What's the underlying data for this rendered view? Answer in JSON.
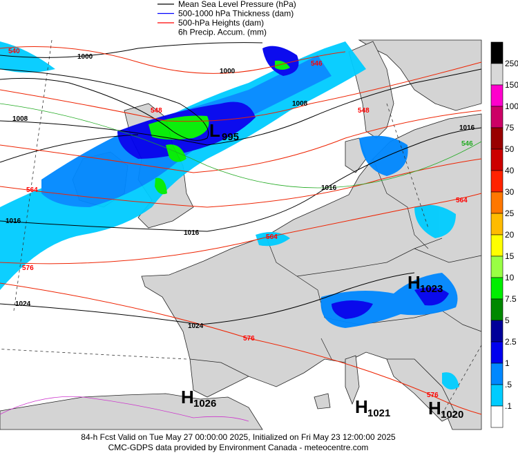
{
  "legend": [
    {
      "label": "Mean Sea Level Pressure (hPa)",
      "color": "#000000"
    },
    {
      "label": "500-1000 hPa Thickness (dam)",
      "color": "#0000ff"
    },
    {
      "label": "500-hPa Heights (dam)",
      "color": "#ff0000"
    },
    {
      "label": "6h Precip. Accum. (mm)"
    }
  ],
  "colorbar": {
    "labels": [
      "250",
      "150",
      "100",
      "75",
      "50",
      "40",
      "30",
      "25",
      "20",
      "15",
      "10",
      "7.5",
      "5",
      "2.5",
      "1",
      ".5",
      ".1"
    ],
    "colors": [
      "#000000",
      "#d8d8d8",
      "#ff00cc",
      "#cc0066",
      "#990000",
      "#cc0000",
      "#ff2200",
      "#ff7700",
      "#ffbb00",
      "#ffff00",
      "#99ff44",
      "#00ee00",
      "#008800",
      "#000099",
      "#0000ee",
      "#0088ff",
      "#00ccff",
      "#ffffff"
    ]
  },
  "pressure_centers": [
    {
      "letter": "L",
      "value": "995"
    },
    {
      "letter": "H",
      "value": "1023"
    },
    {
      "letter": "H",
      "value": "1026"
    },
    {
      "letter": "H",
      "value": "1021"
    },
    {
      "letter": "H",
      "value": "1020"
    }
  ],
  "contour_labels": [
    {
      "text": "540",
      "color": "#ff0000"
    },
    {
      "text": "1000",
      "color": "#000000"
    },
    {
      "text": "1000",
      "color": "#000000"
    },
    {
      "text": "1008",
      "color": "#000000"
    },
    {
      "text": "546",
      "color": "#ff0000"
    },
    {
      "text": "548",
      "color": "#ff0000"
    },
    {
      "text": "1008",
      "color": "#000000"
    },
    {
      "text": "548",
      "color": "#ff0000"
    },
    {
      "text": "1016",
      "color": "#000000"
    },
    {
      "text": "546",
      "color": "#22aa22"
    },
    {
      "text": "1016",
      "color": "#000000"
    },
    {
      "text": "564",
      "color": "#ff0000"
    },
    {
      "text": "564",
      "color": "#ff0000"
    },
    {
      "text": "1016",
      "color": "#000000"
    },
    {
      "text": "1016",
      "color": "#000000"
    },
    {
      "text": "564",
      "color": "#ff0000"
    },
    {
      "text": "576",
      "color": "#ff0000"
    },
    {
      "text": "1024",
      "color": "#000000"
    },
    {
      "text": "1024",
      "color": "#000000"
    },
    {
      "text": "576",
      "color": "#ff0000"
    },
    {
      "text": "576",
      "color": "#ff0000"
    }
  ],
  "footer": [
    "84-h Fcst Valid on Tue May 27 00:00:00 2025, Initialized on Fri May 23 12:00:00 2025",
    "CMC-GDPS data provided by Environment Canada - meteocentre.com"
  ]
}
